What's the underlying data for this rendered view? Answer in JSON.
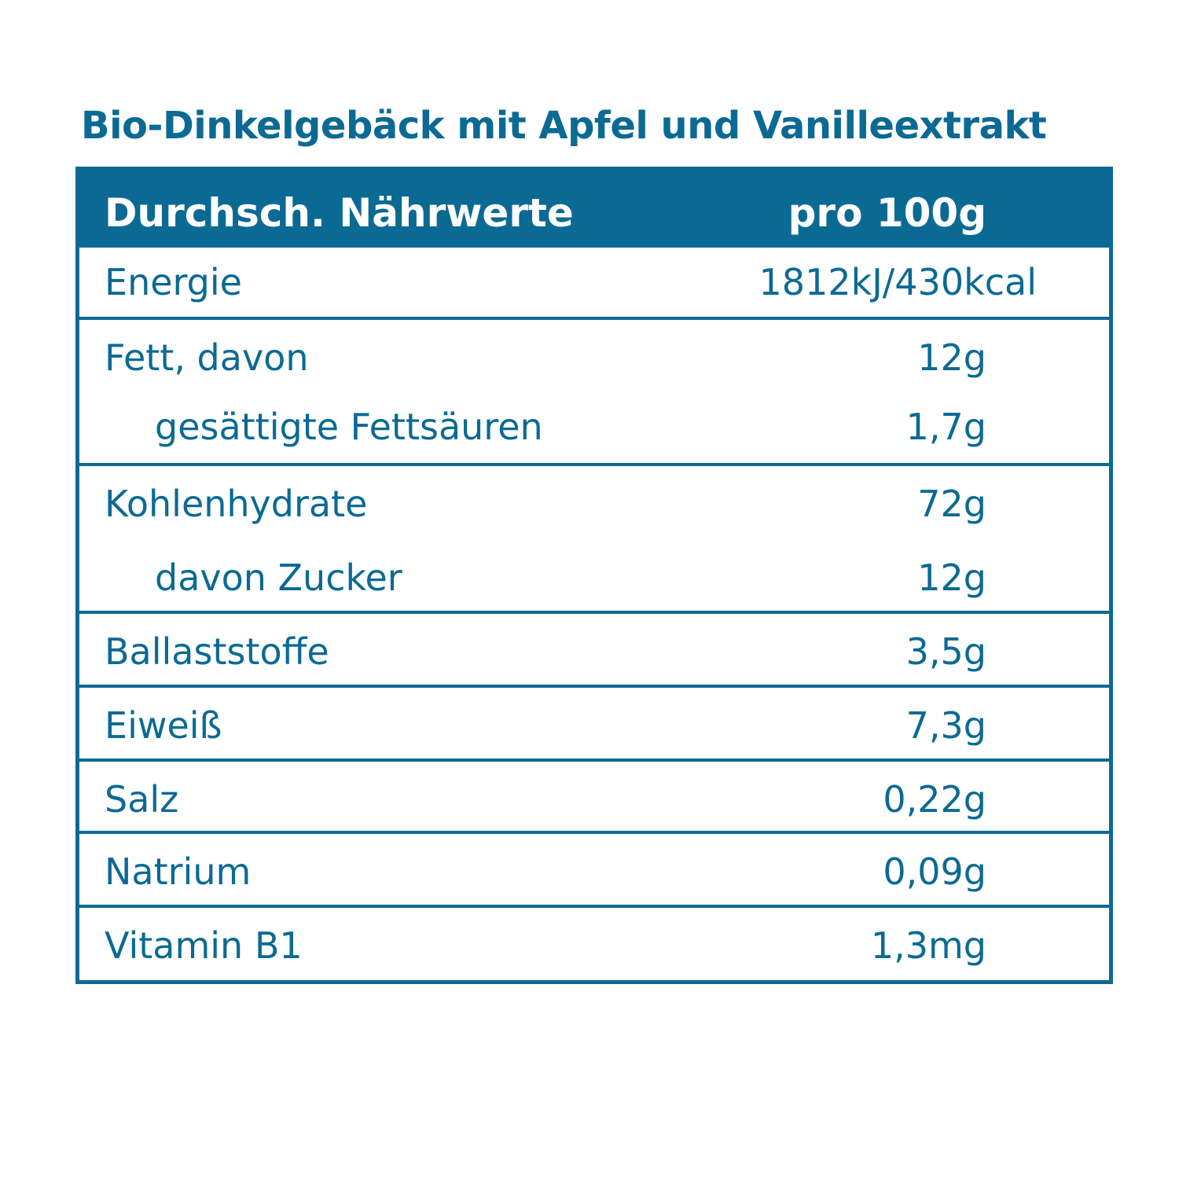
{
  "title": "Bio-Dinkelgebäck mit Apfel und Vanilleextrakt",
  "colors": {
    "accent": "#0b6a93",
    "background": "#ffffff",
    "header_text": "#ffffff"
  },
  "table": {
    "header": {
      "label": "Durchsch. Nährwerte",
      "value": "pro 100g"
    },
    "rows": [
      {
        "label": "Energie",
        "value": "1812kJ/430kcal"
      },
      {
        "label": "Fett, davon",
        "value": "12g"
      },
      {
        "label": "gesättigte Fettsäuren",
        "value": "1,7g"
      },
      {
        "label": "Kohlenhydrate",
        "value": "72g"
      },
      {
        "label": "davon Zucker",
        "value": "12g"
      },
      {
        "label": "Ballaststoffe",
        "value": "3,5g"
      },
      {
        "label": "Eiweiß",
        "value": "7,3g"
      },
      {
        "label": "Salz",
        "value": "0,22g"
      },
      {
        "label": "Natrium",
        "value": "0,09g"
      },
      {
        "label": "Vitamin B1",
        "value": "1,3mg"
      }
    ]
  }
}
